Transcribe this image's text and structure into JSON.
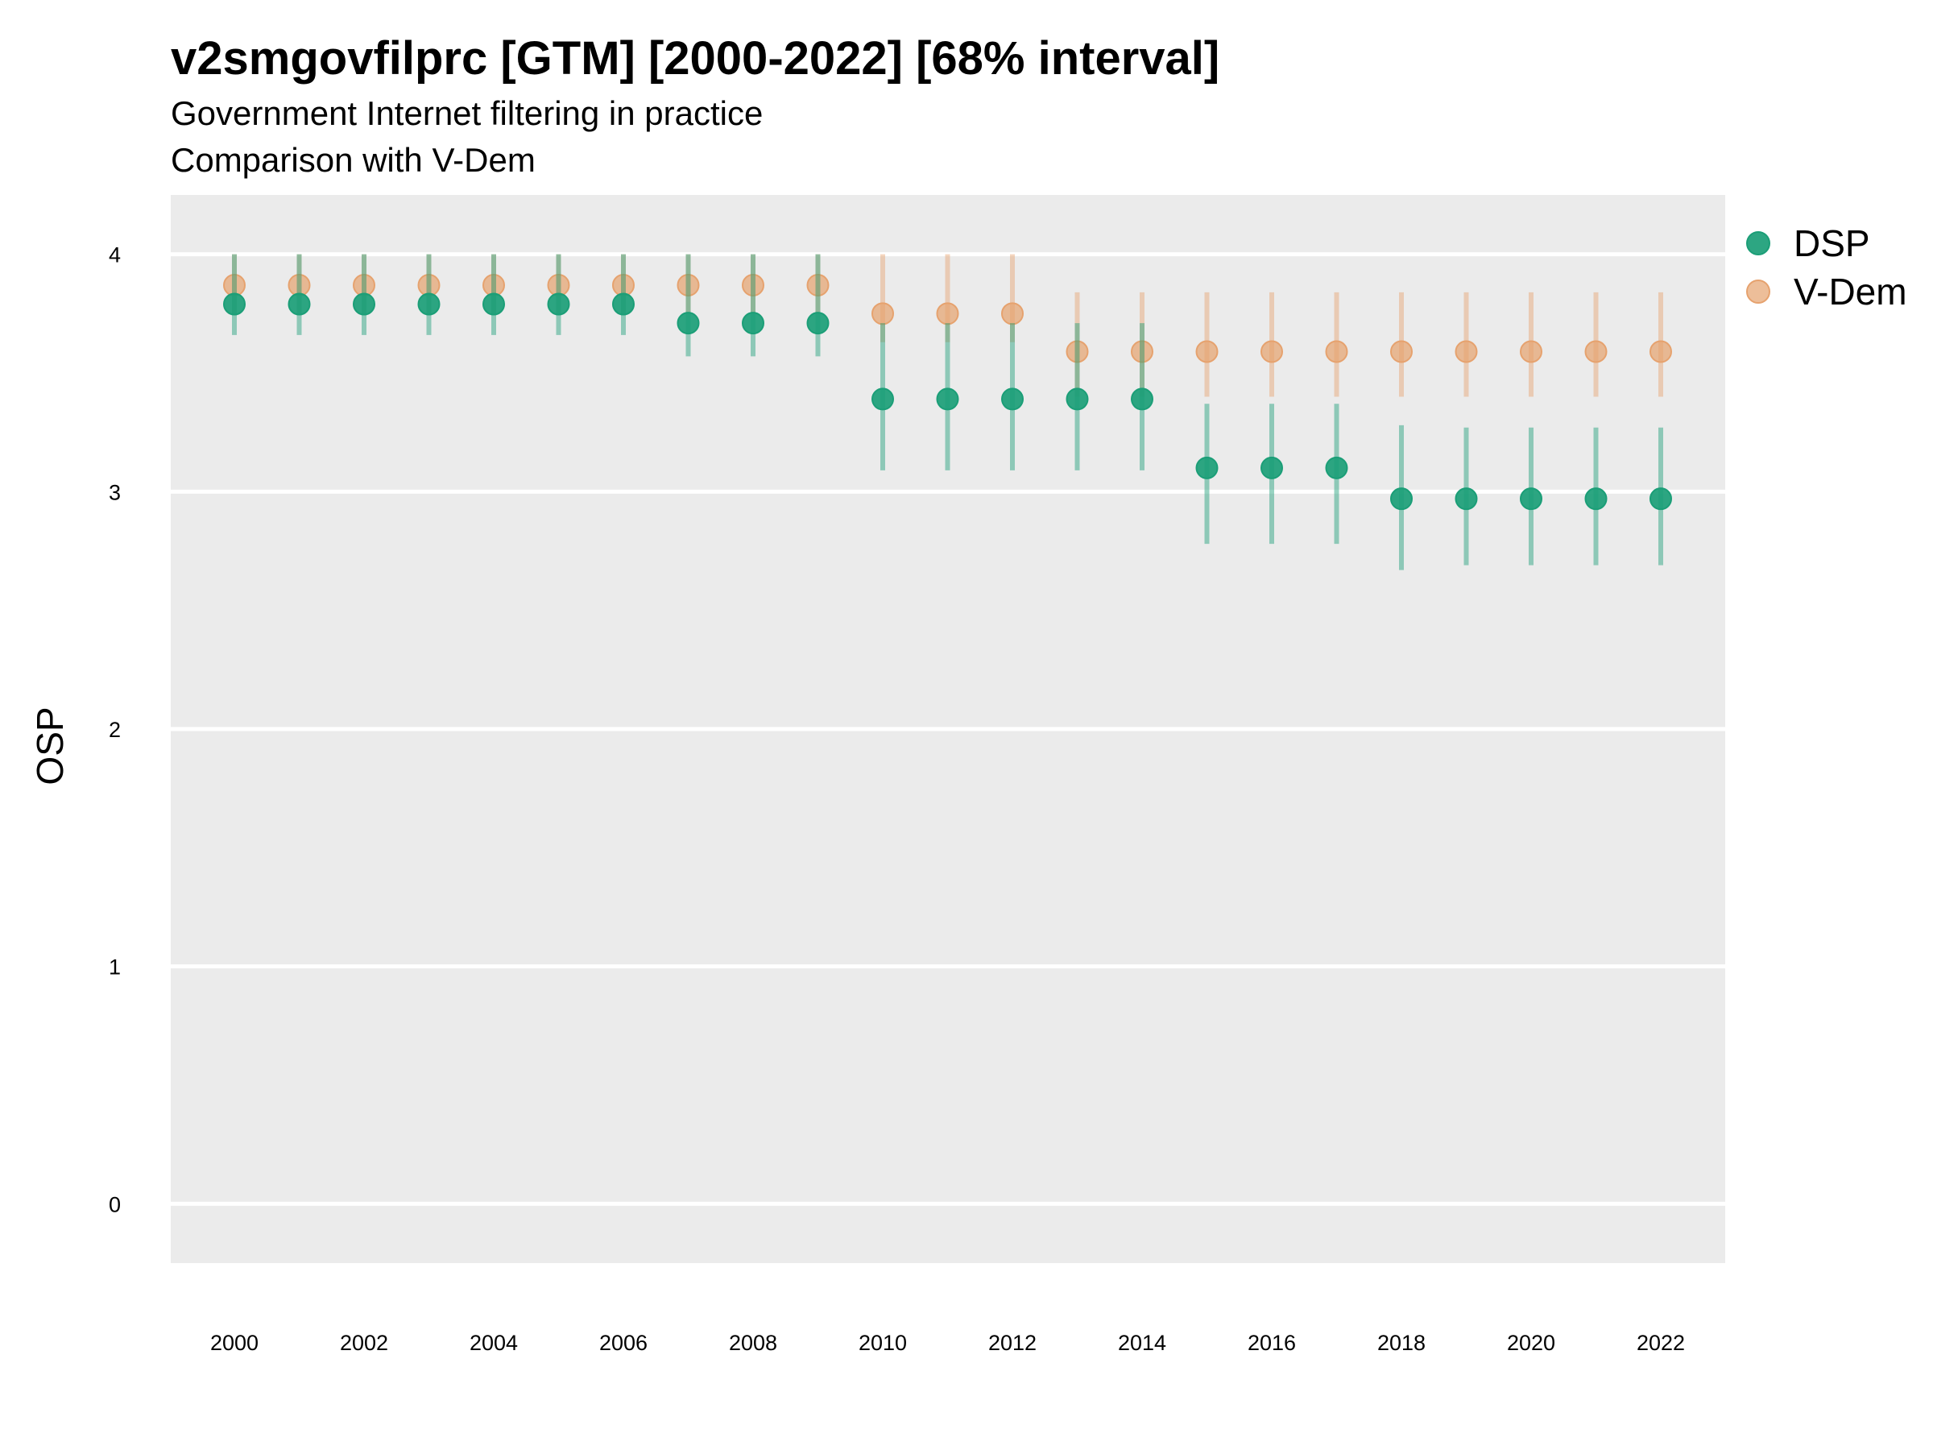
{
  "chart_data": {
    "type": "scatter",
    "title": "v2smgovfilprc [GTM] [2000-2022] [68% interval]",
    "subtitle_line1": "Government Internet filtering in practice",
    "subtitle_line2": "Comparison with V-Dem",
    "ylabel": "OSP",
    "xlabel": "",
    "ylim": [
      -0.25,
      4.25
    ],
    "yticks": [
      "0",
      "1",
      "2",
      "3",
      "4"
    ],
    "xticks": [
      "2000",
      "2002",
      "2004",
      "2006",
      "2008",
      "2010",
      "2012",
      "2014",
      "2016",
      "2018",
      "2020",
      "2022"
    ],
    "x": [
      2000,
      2001,
      2002,
      2003,
      2004,
      2005,
      2006,
      2007,
      2008,
      2009,
      2010,
      2011,
      2012,
      2013,
      2014,
      2015,
      2016,
      2017,
      2018,
      2019,
      2020,
      2021,
      2022
    ],
    "grid": true,
    "legend_position": "right",
    "series": [
      {
        "name": "DSP",
        "color": "#1b9e77",
        "values": [
          3.79,
          3.79,
          3.79,
          3.79,
          3.79,
          3.79,
          3.79,
          3.71,
          3.71,
          3.71,
          3.39,
          3.39,
          3.39,
          3.39,
          3.39,
          3.1,
          3.1,
          3.1,
          2.97,
          2.97,
          2.97,
          2.97,
          2.97
        ],
        "lower": [
          3.66,
          3.66,
          3.66,
          3.66,
          3.66,
          3.66,
          3.66,
          3.57,
          3.57,
          3.57,
          3.09,
          3.09,
          3.09,
          3.09,
          3.09,
          2.78,
          2.78,
          2.78,
          2.67,
          2.69,
          2.69,
          2.69,
          2.69
        ],
        "upper": [
          4.0,
          4.0,
          4.0,
          4.0,
          4.0,
          4.0,
          4.0,
          4.0,
          4.0,
          4.0,
          3.71,
          3.71,
          3.71,
          3.71,
          3.71,
          3.37,
          3.37,
          3.37,
          3.28,
          3.27,
          3.27,
          3.27,
          3.27
        ]
      },
      {
        "name": "V-Dem",
        "color": "#e6a26e",
        "values": [
          3.87,
          3.87,
          3.87,
          3.87,
          3.87,
          3.87,
          3.87,
          3.87,
          3.87,
          3.87,
          3.75,
          3.75,
          3.75,
          3.59,
          3.59,
          3.59,
          3.59,
          3.59,
          3.59,
          3.59,
          3.59,
          3.59,
          3.59
        ],
        "lower": [
          3.75,
          3.75,
          3.75,
          3.75,
          3.75,
          3.75,
          3.75,
          3.75,
          3.75,
          3.75,
          3.63,
          3.63,
          3.63,
          3.4,
          3.4,
          3.4,
          3.4,
          3.4,
          3.4,
          3.4,
          3.4,
          3.4,
          3.4
        ],
        "upper": [
          4.0,
          4.0,
          4.0,
          4.0,
          4.0,
          4.0,
          4.0,
          4.0,
          4.0,
          4.0,
          4.0,
          4.0,
          4.0,
          3.84,
          3.84,
          3.84,
          3.84,
          3.84,
          3.84,
          3.84,
          3.84,
          3.84,
          3.84
        ]
      }
    ]
  }
}
